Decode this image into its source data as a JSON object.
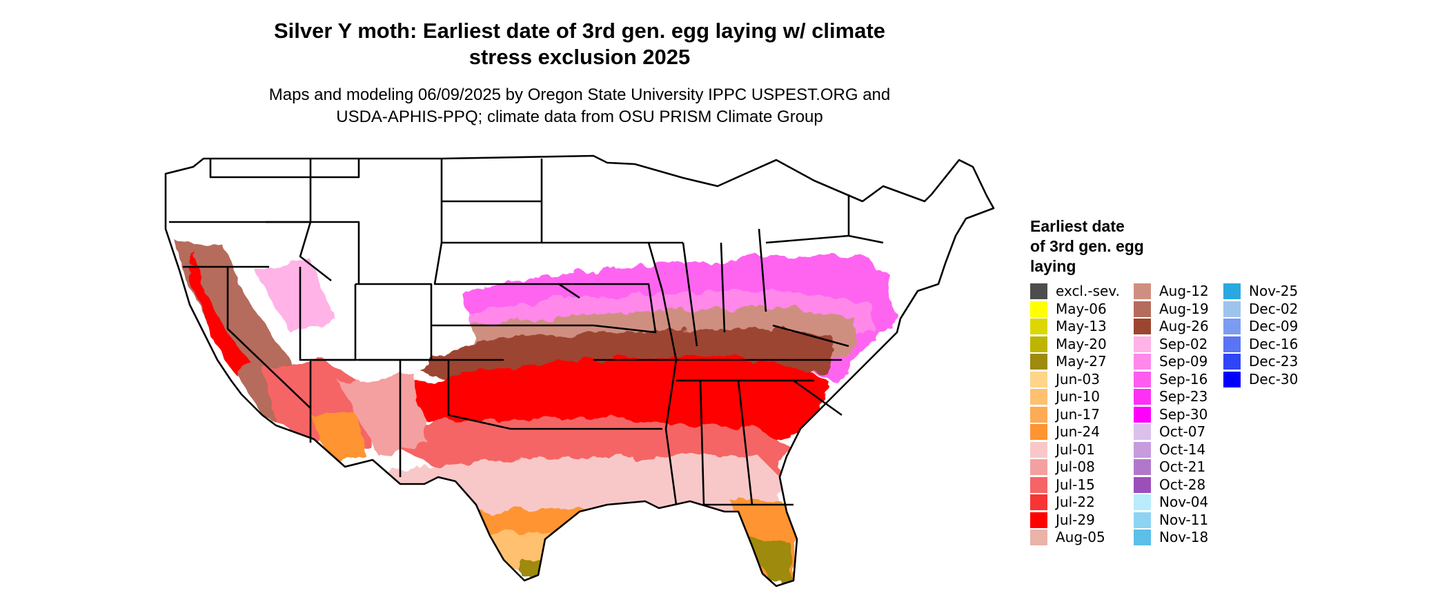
{
  "title_line1": "Silver Y moth: Earliest date of 3rd gen. egg laying w/ climate",
  "title_line2": "stress exclusion 2025",
  "subtitle_line1": "Maps and modeling 06/09/2025 by Oregon State University IPPC USPEST.ORG and",
  "subtitle_line2": "USDA-APHIS-PPQ; climate data from OSU PRISM Climate Group",
  "legend": {
    "title_line1": "Earliest date",
    "title_line2": "of 3rd gen. egg",
    "title_line3": "laying",
    "columns": [
      [
        {
          "label": "excl.-sev.",
          "color": "#4d4d4d"
        },
        {
          "label": "May-06",
          "color": "#ffff00"
        },
        {
          "label": "May-13",
          "color": "#dcd700"
        },
        {
          "label": "May-20",
          "color": "#bdb500"
        },
        {
          "label": "May-27",
          "color": "#9e8a0c"
        },
        {
          "label": "Jun-03",
          "color": "#ffd58a"
        },
        {
          "label": "Jun-10",
          "color": "#ffc070"
        },
        {
          "label": "Jun-17",
          "color": "#ffaa55"
        },
        {
          "label": "Jun-24",
          "color": "#ff9433"
        },
        {
          "label": "Jul-01",
          "color": "#f8c8c8"
        },
        {
          "label": "Jul-08",
          "color": "#f4a0a0"
        },
        {
          "label": "Jul-15",
          "color": "#f56565"
        },
        {
          "label": "Jul-22",
          "color": "#f73535"
        },
        {
          "label": "Jul-29",
          "color": "#ff0000"
        },
        {
          "label": "Aug-05",
          "color": "#e9b3a8"
        }
      ],
      [
        {
          "label": "Aug-12",
          "color": "#cf8f80"
        },
        {
          "label": "Aug-19",
          "color": "#b56c5c"
        },
        {
          "label": "Aug-26",
          "color": "#9c4530"
        },
        {
          "label": "Sep-02",
          "color": "#ffb3e6"
        },
        {
          "label": "Sep-09",
          "color": "#ff88ea"
        },
        {
          "label": "Sep-16",
          "color": "#ff5cf0"
        },
        {
          "label": "Sep-23",
          "color": "#ff30f5"
        },
        {
          "label": "Sep-30",
          "color": "#ff00ff"
        },
        {
          "label": "Oct-07",
          "color": "#dcc0ec"
        },
        {
          "label": "Oct-14",
          "color": "#c79bdc"
        },
        {
          "label": "Oct-21",
          "color": "#b277cc"
        },
        {
          "label": "Oct-28",
          "color": "#9b4fba"
        },
        {
          "label": "Nov-04",
          "color": "#b8ecfc"
        },
        {
          "label": "Nov-11",
          "color": "#8dd4f2"
        },
        {
          "label": "Nov-18",
          "color": "#5bbfe8"
        }
      ],
      [
        {
          "label": "Nov-25",
          "color": "#2aa8e0"
        },
        {
          "label": "Dec-02",
          "color": "#9ec4ee"
        },
        {
          "label": "Dec-09",
          "color": "#7c9cf2"
        },
        {
          "label": "Dec-16",
          "color": "#5a74f5"
        },
        {
          "label": "Dec-23",
          "color": "#2f45f8"
        },
        {
          "label": "Dec-30",
          "color": "#0000ff"
        }
      ]
    ]
  }
}
